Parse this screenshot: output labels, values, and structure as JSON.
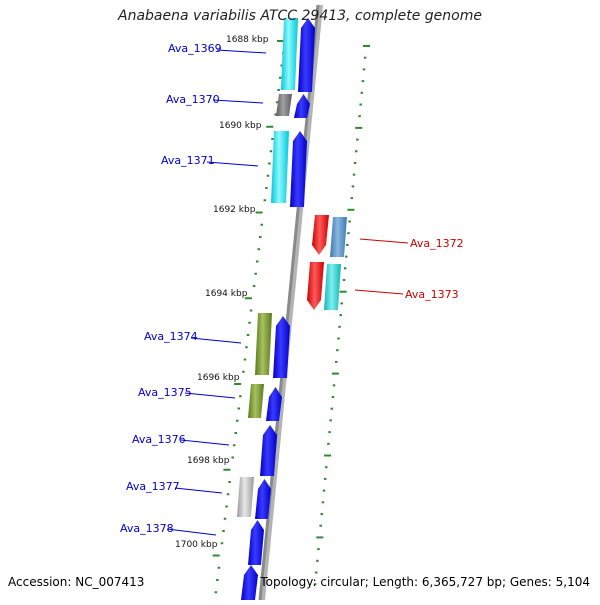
{
  "title": "Anabaena variabilis ATCC 29413, complete genome",
  "accession": "Accession: NC_007413",
  "topology": "Topology: circular; Length: 6,365,727 bp; Genes: 5,104",
  "colors": {
    "axis": "#8a8a8a",
    "tick": "#2e8b2e",
    "left_label": "#0000cc",
    "right_label": "#cc0000"
  },
  "kbp_labels": [
    "1688 kbp",
    "1690 kbp",
    "1692 kbp",
    "1694 kbp",
    "1696 kbp",
    "1698 kbp",
    "1700 kbp"
  ],
  "genes_left": [
    "Ava_1369",
    "Ava_1370",
    "Ava_1371",
    "Ava_1374",
    "Ava_1375",
    "Ava_1376",
    "Ava_1377",
    "Ava_1378"
  ],
  "genes_right": [
    "Ava_1372",
    "Ava_1373"
  ]
}
